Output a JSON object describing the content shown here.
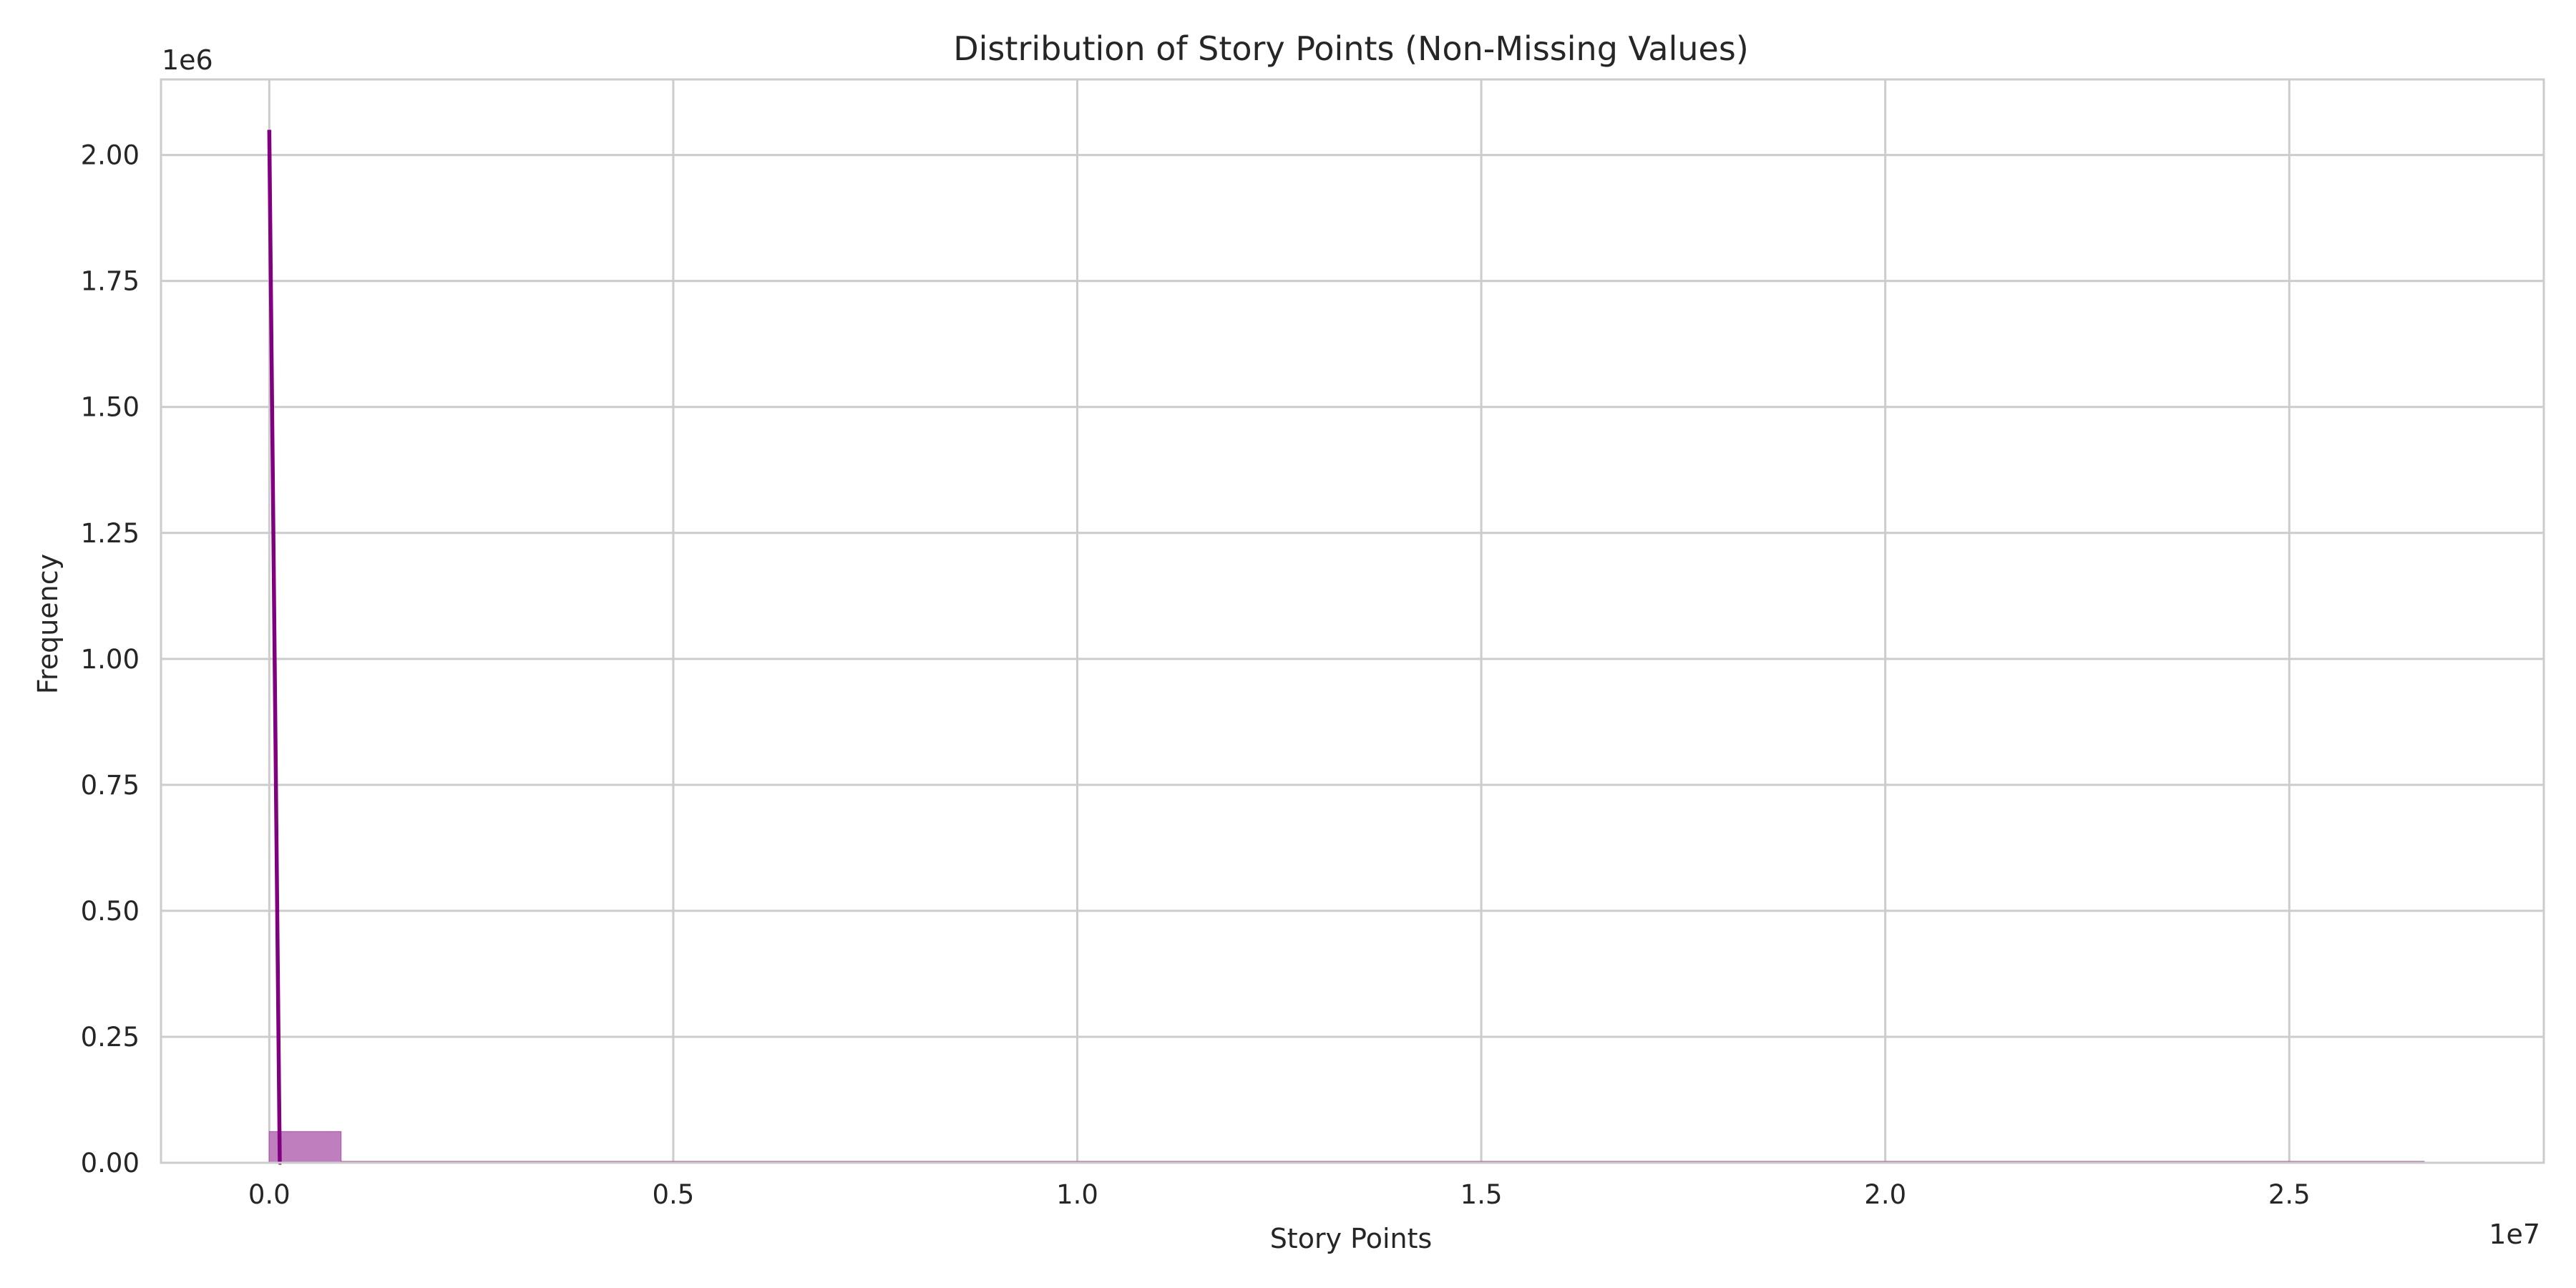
{
  "chart_data": {
    "type": "bar",
    "title": "Distribution of Story Points (Non-Missing Values)",
    "xlabel": "Story Points",
    "ylabel": "Frequency",
    "x_offset_label": "1e7",
    "y_offset_label": "1e6",
    "xlim": [
      -1340000,
      28150000
    ],
    "ylim": [
      0,
      2150000
    ],
    "grid": true,
    "x_ticks": [
      {
        "value": 0,
        "label": "0.0"
      },
      {
        "value": 5000000,
        "label": "0.5"
      },
      {
        "value": 10000000,
        "label": "1.0"
      },
      {
        "value": 15000000,
        "label": "1.5"
      },
      {
        "value": 20000000,
        "label": "2.0"
      },
      {
        "value": 25000000,
        "label": "2.5"
      }
    ],
    "y_ticks": [
      {
        "value": 0,
        "label": "0.00"
      },
      {
        "value": 250000,
        "label": "0.25"
      },
      {
        "value": 500000,
        "label": "0.50"
      },
      {
        "value": 750000,
        "label": "0.75"
      },
      {
        "value": 1000000,
        "label": "1.00"
      },
      {
        "value": 1250000,
        "label": "1.25"
      },
      {
        "value": 1500000,
        "label": "1.50"
      },
      {
        "value": 1750000,
        "label": "1.75"
      },
      {
        "value": 2000000,
        "label": "2.00"
      }
    ],
    "histogram": {
      "bin_width": 889000,
      "bins": [
        {
          "x0": 0,
          "count": 62000
        },
        {
          "x0": 889000,
          "count": 1
        },
        {
          "x0": 1778000,
          "count": 1
        },
        {
          "x0": 2667000,
          "count": 1
        },
        {
          "x0": 3556000,
          "count": 1
        },
        {
          "x0": 4445000,
          "count": 1
        },
        {
          "x0": 5334000,
          "count": 1
        },
        {
          "x0": 6223000,
          "count": 1
        },
        {
          "x0": 7112000,
          "count": 1
        },
        {
          "x0": 8001000,
          "count": 1
        },
        {
          "x0": 8890000,
          "count": 1
        },
        {
          "x0": 9779000,
          "count": 1
        },
        {
          "x0": 10668000,
          "count": 1
        },
        {
          "x0": 11557000,
          "count": 1
        },
        {
          "x0": 12446000,
          "count": 1
        },
        {
          "x0": 13335000,
          "count": 1
        },
        {
          "x0": 14224000,
          "count": 1
        },
        {
          "x0": 15113000,
          "count": 1
        },
        {
          "x0": 16002000,
          "count": 1
        },
        {
          "x0": 16891000,
          "count": 1
        },
        {
          "x0": 17780000,
          "count": 1
        },
        {
          "x0": 18669000,
          "count": 1
        },
        {
          "x0": 19558000,
          "count": 1
        },
        {
          "x0": 20447000,
          "count": 1
        },
        {
          "x0": 21336000,
          "count": 1
        },
        {
          "x0": 22225000,
          "count": 1
        },
        {
          "x0": 23114000,
          "count": 1
        },
        {
          "x0": 24003000,
          "count": 1
        },
        {
          "x0": 24892000,
          "count": 1
        },
        {
          "x0": 25781000,
          "count": 1
        }
      ]
    },
    "kde": {
      "x": [
        0,
        130000,
        150000
      ],
      "y": [
        2050000,
        0,
        0
      ]
    },
    "colors": {
      "bar_fill": "#bf7fbf",
      "bar_stroke": "#a658a6",
      "kde_line": "#800080",
      "grid": "#cccccc",
      "spine": "#cccccc"
    }
  }
}
